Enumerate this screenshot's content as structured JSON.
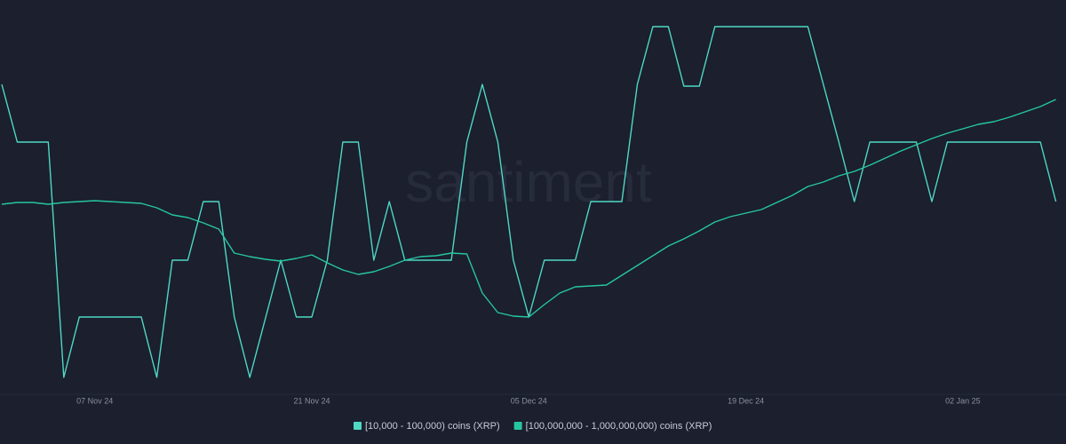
{
  "chart_data": {
    "type": "line",
    "watermark": "santiment",
    "categories": [
      null,
      null,
      null,
      null,
      null,
      null,
      "07 Nov 24",
      null,
      null,
      null,
      null,
      null,
      null,
      null,
      null,
      null,
      null,
      null,
      null,
      null,
      "21 Nov 24",
      null,
      null,
      null,
      null,
      null,
      null,
      null,
      null,
      null,
      null,
      null,
      null,
      null,
      "05 Dec 24",
      null,
      null,
      null,
      null,
      null,
      null,
      null,
      null,
      null,
      null,
      null,
      null,
      null,
      "19 Dec 24",
      null,
      null,
      null,
      null,
      null,
      null,
      null,
      null,
      null,
      null,
      null,
      null,
      null,
      "02 Jan 25",
      null,
      null,
      null,
      null,
      null,
      null
    ],
    "series": [
      {
        "name": "[10,000 - 100,000) coins (XRP)",
        "color": "#4fd8c4",
        "values": [
          345,
          280,
          280,
          280,
          15,
          83,
          83,
          83,
          83,
          83,
          15,
          147,
          147,
          213,
          213,
          83,
          15,
          81,
          147,
          83,
          83,
          147,
          280,
          280,
          147,
          213,
          147,
          147,
          147,
          147,
          280,
          345,
          280,
          147,
          83,
          147,
          147,
          147,
          213,
          213,
          213,
          345,
          410,
          410,
          343,
          343,
          410,
          410,
          410,
          410,
          410,
          410,
          410,
          345,
          280,
          213,
          280,
          280,
          280,
          280,
          213,
          280,
          280,
          280,
          280,
          280,
          280,
          280,
          213
        ]
      },
      {
        "name": "[100,000,000 - 1,000,000,000) coins (XRP)",
        "color": "#26c6a0",
        "values": [
          210,
          212,
          212,
          210,
          212,
          213,
          214,
          213,
          212,
          211,
          206,
          198,
          195,
          189,
          182,
          155,
          151,
          148,
          146,
          149,
          153,
          144,
          136,
          131,
          134,
          140,
          147,
          151,
          152,
          155,
          154,
          110,
          88,
          84,
          83,
          97,
          110,
          117,
          118,
          119,
          130,
          141,
          152,
          163,
          171,
          180,
          190,
          196,
          200,
          204,
          212,
          220,
          230,
          235,
          242,
          247,
          254,
          262,
          270,
          277,
          284,
          290,
          295,
          300,
          303,
          308,
          314,
          320,
          328
        ]
      }
    ],
    "ylim": [
      0,
      420
    ]
  }
}
